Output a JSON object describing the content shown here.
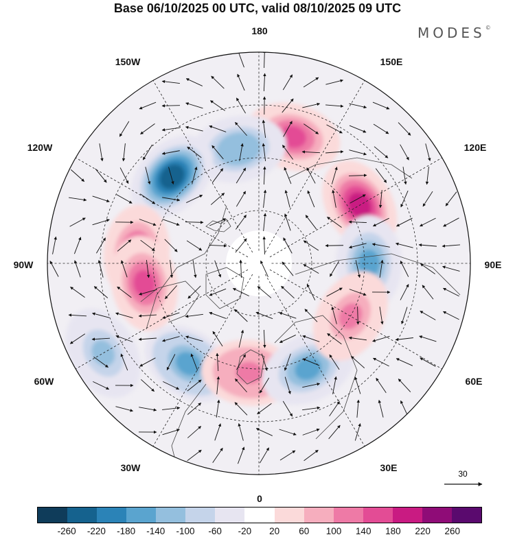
{
  "title": "Base 06/10/2025 00 UTC, valid 08/10/2025 09 UTC",
  "brand": "MODES",
  "brand_mark": "©",
  "longitude_labels": {
    "top": "180",
    "bottom": "0",
    "left": "90W",
    "right": "90E",
    "nw1": "150W",
    "nw2": "120W",
    "ne1": "150E",
    "ne2": "120E",
    "sw1": "60W",
    "sw2": "30W",
    "se1": "60E",
    "se2": "30E"
  },
  "reference_vector": {
    "label": "30"
  },
  "colorbar": {
    "ticks": [
      "-260",
      "-220",
      "-180",
      "-140",
      "-100",
      "-60",
      "-20",
      "20",
      "60",
      "100",
      "140",
      "180",
      "220",
      "260"
    ],
    "colors": [
      "#0f3c5a",
      "#15628e",
      "#2b83b7",
      "#5aa4cf",
      "#94bfde",
      "#c5d4ea",
      "#e7e5f1",
      "#ffffff",
      "#fbdada",
      "#f6aebe",
      "#ee7aa6",
      "#e34c95",
      "#c91b82",
      "#8f0c77",
      "#5a0a6e"
    ]
  },
  "anomalies": [
    {
      "name": "pacific-high",
      "lon": 165,
      "r_frac": 0.62,
      "value": 160
    },
    {
      "name": "bering-low",
      "lon": -170,
      "r_frac": 0.55,
      "value": -140
    },
    {
      "name": "siberia-high",
      "lon": 120,
      "r_frac": 0.55,
      "value": 180
    },
    {
      "name": "alaska-canada-low",
      "lon": -135,
      "r_frac": 0.58,
      "value": -230
    },
    {
      "name": "central-siberia-low",
      "lon": 90,
      "r_frac": 0.52,
      "value": -150
    },
    {
      "name": "canada-high",
      "lon": -95,
      "r_frac": 0.58,
      "value": 160
    },
    {
      "name": "hudson-high",
      "lon": -80,
      "r_frac": 0.55,
      "value": 140
    },
    {
      "name": "west-atlantic-low",
      "lon": -60,
      "r_frac": 0.85,
      "value": -110
    },
    {
      "name": "greenland-low",
      "lon": -35,
      "r_frac": 0.58,
      "value": -170
    },
    {
      "name": "north-sea-high",
      "lon": -5,
      "r_frac": 0.52,
      "value": 130
    },
    {
      "name": "scandinavia-low",
      "lon": 25,
      "r_frac": 0.55,
      "value": -150
    },
    {
      "name": "west-siberia-high",
      "lon": 60,
      "r_frac": 0.5,
      "value": 120
    }
  ]
}
